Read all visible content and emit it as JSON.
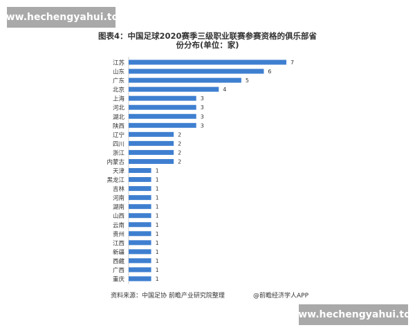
{
  "watermark": "www.hechengyahui.top",
  "chart_data": {
    "type": "bar",
    "orientation": "horizontal",
    "title": "图表4：中国足球2020赛季三级职业联赛参赛资格的俱乐部省份分布(单位：家)",
    "categories": [
      "江苏",
      "山东",
      "广东",
      "北京",
      "上海",
      "河北",
      "湖北",
      "陕西",
      "辽宁",
      "四川",
      "浙江",
      "内蒙古",
      "天津",
      "黑龙江",
      "吉林",
      "河南",
      "湖南",
      "山西",
      "云南",
      "贵州",
      "江西",
      "新疆",
      "西藏",
      "广西",
      "重庆"
    ],
    "values": [
      7,
      6,
      5,
      4,
      3,
      3,
      3,
      3,
      2,
      2,
      2,
      2,
      1,
      1,
      1,
      1,
      1,
      1,
      1,
      1,
      1,
      1,
      1,
      1,
      1
    ],
    "xlim": [
      0,
      7
    ],
    "grid": false,
    "data_labels": true,
    "bar_color": "#3f7fd0"
  },
  "footer": {
    "source": "资料来源：中国足协 前瞻产业研究院整理",
    "credit": "@前瞻经济学人APP"
  }
}
